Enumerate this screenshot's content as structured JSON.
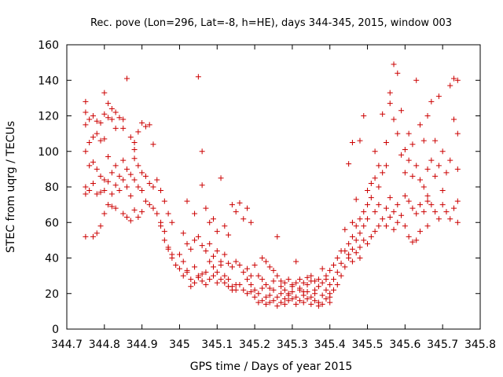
{
  "chart_data": {
    "type": "scatter",
    "title": "Rec. pove (Lon=296, Lat=-8, h=HE), days 344-345, 2015, window 003",
    "xlabel": "GPS time / Days of year 2015",
    "ylabel": "STEC from uqrg / TECUs",
    "xlim": [
      344.7,
      345.8
    ],
    "ylim": [
      0,
      160
    ],
    "x_ticks": [
      344.7,
      344.8,
      344.9,
      345.0,
      345.1,
      345.2,
      345.3,
      345.4,
      345.5,
      345.6,
      345.7,
      345.8
    ],
    "x_tick_labels": [
      "344.7",
      "344.8",
      "344.9",
      "345",
      "345.1",
      "345.2",
      "345.3",
      "345.4",
      "345.5",
      "345.6",
      "345.7",
      "345.8"
    ],
    "y_ticks": [
      0,
      20,
      40,
      60,
      80,
      100,
      120,
      140,
      160
    ],
    "y_tick_labels": [
      "0",
      "20",
      "40",
      "60",
      "80",
      "100",
      "120",
      "140",
      "160"
    ],
    "marker": "+",
    "color": "#cc0000",
    "grid": false,
    "legend": "none",
    "points": [
      [
        344.75,
        128
      ],
      [
        344.75,
        122
      ],
      [
        344.75,
        115
      ],
      [
        344.75,
        100
      ],
      [
        344.76,
        118
      ],
      [
        344.76,
        105
      ],
      [
        344.77,
        120
      ],
      [
        344.77,
        108
      ],
      [
        344.78,
        117
      ],
      [
        344.78,
        110
      ],
      [
        344.79,
        116
      ],
      [
        344.79,
        106
      ],
      [
        344.8,
        133
      ],
      [
        344.8,
        121
      ],
      [
        344.8,
        107
      ],
      [
        344.81,
        127
      ],
      [
        344.81,
        119
      ],
      [
        344.82,
        124
      ],
      [
        344.82,
        118
      ],
      [
        344.83,
        113
      ],
      [
        344.83,
        122
      ],
      [
        344.84,
        119
      ],
      [
        344.85,
        113
      ],
      [
        344.85,
        118
      ],
      [
        344.86,
        141
      ],
      [
        344.87,
        108
      ],
      [
        344.88,
        105
      ],
      [
        344.88,
        101
      ],
      [
        344.89,
        111
      ],
      [
        344.9,
        116
      ],
      [
        344.91,
        114
      ],
      [
        344.92,
        115
      ],
      [
        344.93,
        104
      ],
      [
        344.75,
        80
      ],
      [
        344.75,
        76
      ],
      [
        344.75,
        52
      ],
      [
        344.76,
        92
      ],
      [
        344.76,
        78
      ],
      [
        344.77,
        82
      ],
      [
        344.77,
        94
      ],
      [
        344.77,
        52
      ],
      [
        344.78,
        90
      ],
      [
        344.78,
        76
      ],
      [
        344.78,
        54
      ],
      [
        344.79,
        86
      ],
      [
        344.79,
        77
      ],
      [
        344.79,
        58
      ],
      [
        344.8,
        84
      ],
      [
        344.8,
        78
      ],
      [
        344.8,
        65
      ],
      [
        344.81,
        97
      ],
      [
        344.81,
        83
      ],
      [
        344.81,
        70
      ],
      [
        344.82,
        88
      ],
      [
        344.82,
        76
      ],
      [
        344.82,
        69
      ],
      [
        344.83,
        92
      ],
      [
        344.83,
        81
      ],
      [
        344.83,
        68
      ],
      [
        344.84,
        86
      ],
      [
        344.84,
        78
      ],
      [
        344.85,
        95
      ],
      [
        344.85,
        84
      ],
      [
        344.85,
        65
      ],
      [
        344.86,
        90
      ],
      [
        344.86,
        80
      ],
      [
        344.86,
        63
      ],
      [
        344.87,
        87
      ],
      [
        344.87,
        75
      ],
      [
        344.87,
        61
      ],
      [
        344.88,
        96
      ],
      [
        344.88,
        84
      ],
      [
        344.88,
        67
      ],
      [
        344.89,
        92
      ],
      [
        344.89,
        80
      ],
      [
        344.89,
        63
      ],
      [
        344.9,
        88
      ],
      [
        344.9,
        78
      ],
      [
        344.9,
        66
      ],
      [
        344.91,
        86
      ],
      [
        344.91,
        72
      ],
      [
        344.92,
        82
      ],
      [
        344.92,
        70
      ],
      [
        344.93,
        80
      ],
      [
        344.93,
        68
      ],
      [
        344.94,
        84
      ],
      [
        344.94,
        65
      ],
      [
        344.95,
        78
      ],
      [
        344.95,
        58
      ],
      [
        344.96,
        72
      ],
      [
        344.96,
        50
      ],
      [
        344.97,
        65
      ],
      [
        344.97,
        46
      ],
      [
        344.98,
        60
      ],
      [
        344.98,
        42
      ],
      [
        344.95,
        60
      ],
      [
        344.96,
        55
      ],
      [
        344.97,
        45
      ],
      [
        344.98,
        40
      ],
      [
        344.99,
        36
      ],
      [
        345.0,
        34
      ],
      [
        345.01,
        30
      ],
      [
        345.02,
        32
      ],
      [
        345.03,
        28
      ],
      [
        345.04,
        35
      ],
      [
        345.05,
        30
      ],
      [
        345.06,
        27
      ],
      [
        345.07,
        32
      ],
      [
        345.08,
        28
      ],
      [
        345.09,
        30
      ],
      [
        345.1,
        26
      ],
      [
        345.11,
        28
      ],
      [
        345.12,
        26
      ],
      [
        345.13,
        24
      ],
      [
        345.14,
        22
      ],
      [
        345.15,
        25
      ],
      [
        345.01,
        54
      ],
      [
        345.02,
        48
      ],
      [
        345.03,
        45
      ],
      [
        345.04,
        50
      ],
      [
        345.05,
        52
      ],
      [
        345.06,
        47
      ],
      [
        345.07,
        44
      ],
      [
        345.08,
        48
      ],
      [
        345.09,
        41
      ],
      [
        345.1,
        44
      ],
      [
        345.11,
        38
      ],
      [
        345.12,
        42
      ],
      [
        345.13,
        37
      ],
      [
        345.14,
        35
      ],
      [
        345.15,
        38
      ],
      [
        345.16,
        36
      ],
      [
        345.17,
        32
      ],
      [
        345.18,
        34
      ],
      [
        345.19,
        30
      ],
      [
        345.02,
        72
      ],
      [
        345.04,
        65
      ],
      [
        345.05,
        142
      ],
      [
        345.06,
        100
      ],
      [
        345.06,
        81
      ],
      [
        345.07,
        68
      ],
      [
        345.08,
        60
      ],
      [
        345.09,
        62
      ],
      [
        345.1,
        55
      ],
      [
        345.11,
        85
      ],
      [
        345.12,
        58
      ],
      [
        345.13,
        53
      ],
      [
        345.14,
        70
      ],
      [
        345.15,
        66
      ],
      [
        345.16,
        71
      ],
      [
        345.17,
        62
      ],
      [
        345.18,
        68
      ],
      [
        345.19,
        60
      ],
      [
        345.0,
        42
      ],
      [
        345.01,
        38
      ],
      [
        345.02,
        33
      ],
      [
        345.03,
        24
      ],
      [
        345.04,
        26
      ],
      [
        345.05,
        29
      ],
      [
        345.06,
        31
      ],
      [
        345.07,
        25
      ],
      [
        345.08,
        38
      ],
      [
        345.09,
        35
      ],
      [
        345.1,
        32
      ],
      [
        345.11,
        36
      ],
      [
        345.12,
        30
      ],
      [
        345.13,
        28
      ],
      [
        345.14,
        24
      ],
      [
        345.15,
        22
      ],
      [
        345.16,
        25
      ],
      [
        345.17,
        22
      ],
      [
        345.18,
        20
      ],
      [
        345.19,
        21
      ],
      [
        345.18,
        28
      ],
      [
        345.19,
        25
      ],
      [
        345.2,
        22
      ],
      [
        345.2,
        18
      ],
      [
        345.21,
        20
      ],
      [
        345.21,
        15
      ],
      [
        345.22,
        16
      ],
      [
        345.22,
        23
      ],
      [
        345.23,
        18
      ],
      [
        345.23,
        14
      ],
      [
        345.24,
        19
      ],
      [
        345.24,
        15
      ],
      [
        345.25,
        22
      ],
      [
        345.25,
        16
      ],
      [
        345.26,
        18
      ],
      [
        345.26,
        13
      ],
      [
        345.27,
        20
      ],
      [
        345.27,
        15
      ],
      [
        345.28,
        17
      ],
      [
        345.28,
        14
      ],
      [
        345.29,
        19
      ],
      [
        345.29,
        16
      ],
      [
        345.3,
        21
      ],
      [
        345.3,
        17
      ],
      [
        345.31,
        18
      ],
      [
        345.31,
        14
      ],
      [
        345.32,
        22
      ],
      [
        345.32,
        16
      ],
      [
        345.33,
        19
      ],
      [
        345.33,
        15
      ],
      [
        345.34,
        21
      ],
      [
        345.34,
        17
      ],
      [
        345.35,
        18
      ],
      [
        345.35,
        14
      ],
      [
        345.36,
        20
      ],
      [
        345.36,
        16
      ],
      [
        345.37,
        15
      ],
      [
        345.37,
        13
      ],
      [
        345.38,
        19
      ],
      [
        345.38,
        14
      ],
      [
        345.39,
        17
      ],
      [
        345.39,
        22
      ],
      [
        345.4,
        18
      ],
      [
        345.4,
        15
      ],
      [
        345.2,
        36
      ],
      [
        345.21,
        30
      ],
      [
        345.22,
        28
      ],
      [
        345.23,
        25
      ],
      [
        345.24,
        23
      ],
      [
        345.25,
        27
      ],
      [
        345.26,
        52
      ],
      [
        345.27,
        24
      ],
      [
        345.28,
        22
      ],
      [
        345.29,
        20
      ],
      [
        345.3,
        24
      ],
      [
        345.31,
        38
      ],
      [
        345.32,
        23
      ],
      [
        345.33,
        21
      ],
      [
        345.34,
        25
      ],
      [
        345.35,
        27
      ],
      [
        345.36,
        22
      ],
      [
        345.37,
        24
      ],
      [
        345.38,
        34
      ],
      [
        345.39,
        28
      ],
      [
        345.4,
        25
      ],
      [
        345.22,
        40
      ],
      [
        345.23,
        38
      ],
      [
        345.24,
        35
      ],
      [
        345.25,
        33
      ],
      [
        345.26,
        30
      ],
      [
        345.27,
        27
      ],
      [
        345.28,
        26
      ],
      [
        345.29,
        28
      ],
      [
        345.3,
        25
      ],
      [
        345.31,
        26
      ],
      [
        345.32,
        28
      ],
      [
        345.33,
        26
      ],
      [
        345.34,
        29
      ],
      [
        345.35,
        30
      ],
      [
        345.36,
        27
      ],
      [
        345.37,
        28
      ],
      [
        345.38,
        26
      ],
      [
        345.39,
        30
      ],
      [
        345.4,
        33
      ],
      [
        345.4,
        20
      ],
      [
        345.41,
        22
      ],
      [
        345.41,
        28
      ],
      [
        345.42,
        25
      ],
      [
        345.42,
        32
      ],
      [
        345.43,
        30
      ],
      [
        345.43,
        37
      ],
      [
        345.44,
        35
      ],
      [
        345.44,
        44
      ],
      [
        345.45,
        40
      ],
      [
        345.45,
        48
      ],
      [
        345.46,
        45
      ],
      [
        345.46,
        52
      ],
      [
        345.47,
        50
      ],
      [
        345.47,
        58
      ],
      [
        345.48,
        54
      ],
      [
        345.48,
        62
      ],
      [
        345.49,
        58
      ],
      [
        345.49,
        66
      ],
      [
        345.5,
        62
      ],
      [
        345.5,
        70
      ],
      [
        345.41,
        36
      ],
      [
        345.42,
        40
      ],
      [
        345.43,
        44
      ],
      [
        345.44,
        56
      ],
      [
        345.45,
        42
      ],
      [
        345.46,
        38
      ],
      [
        345.46,
        60
      ],
      [
        345.47,
        43
      ],
      [
        345.48,
        46
      ],
      [
        345.48,
        40
      ],
      [
        345.49,
        50
      ],
      [
        345.49,
        120
      ],
      [
        345.5,
        48
      ],
      [
        345.51,
        52
      ],
      [
        345.51,
        74
      ],
      [
        345.52,
        55
      ],
      [
        345.52,
        85
      ],
      [
        345.53,
        58
      ],
      [
        345.53,
        92
      ],
      [
        345.45,
        93
      ],
      [
        345.46,
        105
      ],
      [
        345.47,
        73
      ],
      [
        345.48,
        106
      ],
      [
        345.5,
        78
      ],
      [
        345.51,
        82
      ],
      [
        345.52,
        100
      ],
      [
        345.53,
        80
      ],
      [
        345.54,
        88
      ],
      [
        345.54,
        121
      ],
      [
        345.55,
        105
      ],
      [
        345.55,
        92
      ],
      [
        345.56,
        133
      ],
      [
        345.56,
        127
      ],
      [
        345.57,
        149
      ],
      [
        345.57,
        118
      ],
      [
        345.58,
        144
      ],
      [
        345.58,
        110
      ],
      [
        345.59,
        123
      ],
      [
        345.59,
        98
      ],
      [
        345.52,
        66
      ],
      [
        345.53,
        70
      ],
      [
        345.54,
        62
      ],
      [
        345.55,
        68
      ],
      [
        345.55,
        58
      ],
      [
        345.56,
        74
      ],
      [
        345.56,
        63
      ],
      [
        345.57,
        66
      ],
      [
        345.57,
        56
      ],
      [
        345.58,
        70
      ],
      [
        345.58,
        60
      ],
      [
        345.59,
        64
      ],
      [
        345.6,
        75
      ],
      [
        345.6,
        58
      ],
      [
        345.61,
        72
      ],
      [
        345.61,
        52
      ],
      [
        345.62,
        68
      ],
      [
        345.62,
        49
      ],
      [
        345.63,
        65
      ],
      [
        345.63,
        50
      ],
      [
        345.64,
        70
      ],
      [
        345.64,
        55
      ],
      [
        345.65,
        66
      ],
      [
        345.66,
        72
      ],
      [
        345.66,
        58
      ],
      [
        345.6,
        101
      ],
      [
        345.6,
        88
      ],
      [
        345.61,
        110
      ],
      [
        345.61,
        95
      ],
      [
        345.62,
        104
      ],
      [
        345.62,
        86
      ],
      [
        345.63,
        140
      ],
      [
        345.63,
        92
      ],
      [
        345.64,
        115
      ],
      [
        345.64,
        84
      ],
      [
        345.65,
        106
      ],
      [
        345.65,
        80
      ],
      [
        345.66,
        120
      ],
      [
        345.66,
        90
      ],
      [
        345.67,
        128
      ],
      [
        345.67,
        95
      ],
      [
        345.68,
        106
      ],
      [
        345.68,
        86
      ],
      [
        345.69,
        131
      ],
      [
        345.69,
        92
      ],
      [
        345.7,
        100
      ],
      [
        345.7,
        78
      ],
      [
        345.71,
        88
      ],
      [
        345.72,
        137
      ],
      [
        345.72,
        95
      ],
      [
        345.73,
        141
      ],
      [
        345.73,
        118
      ],
      [
        345.74,
        140
      ],
      [
        345.74,
        110
      ],
      [
        345.74,
        90
      ],
      [
        345.66,
        75
      ],
      [
        345.67,
        70
      ],
      [
        345.68,
        66
      ],
      [
        345.69,
        62
      ],
      [
        345.7,
        70
      ],
      [
        345.71,
        66
      ],
      [
        345.72,
        62
      ],
      [
        345.73,
        68
      ],
      [
        345.74,
        72
      ],
      [
        345.74,
        60
      ]
    ]
  }
}
